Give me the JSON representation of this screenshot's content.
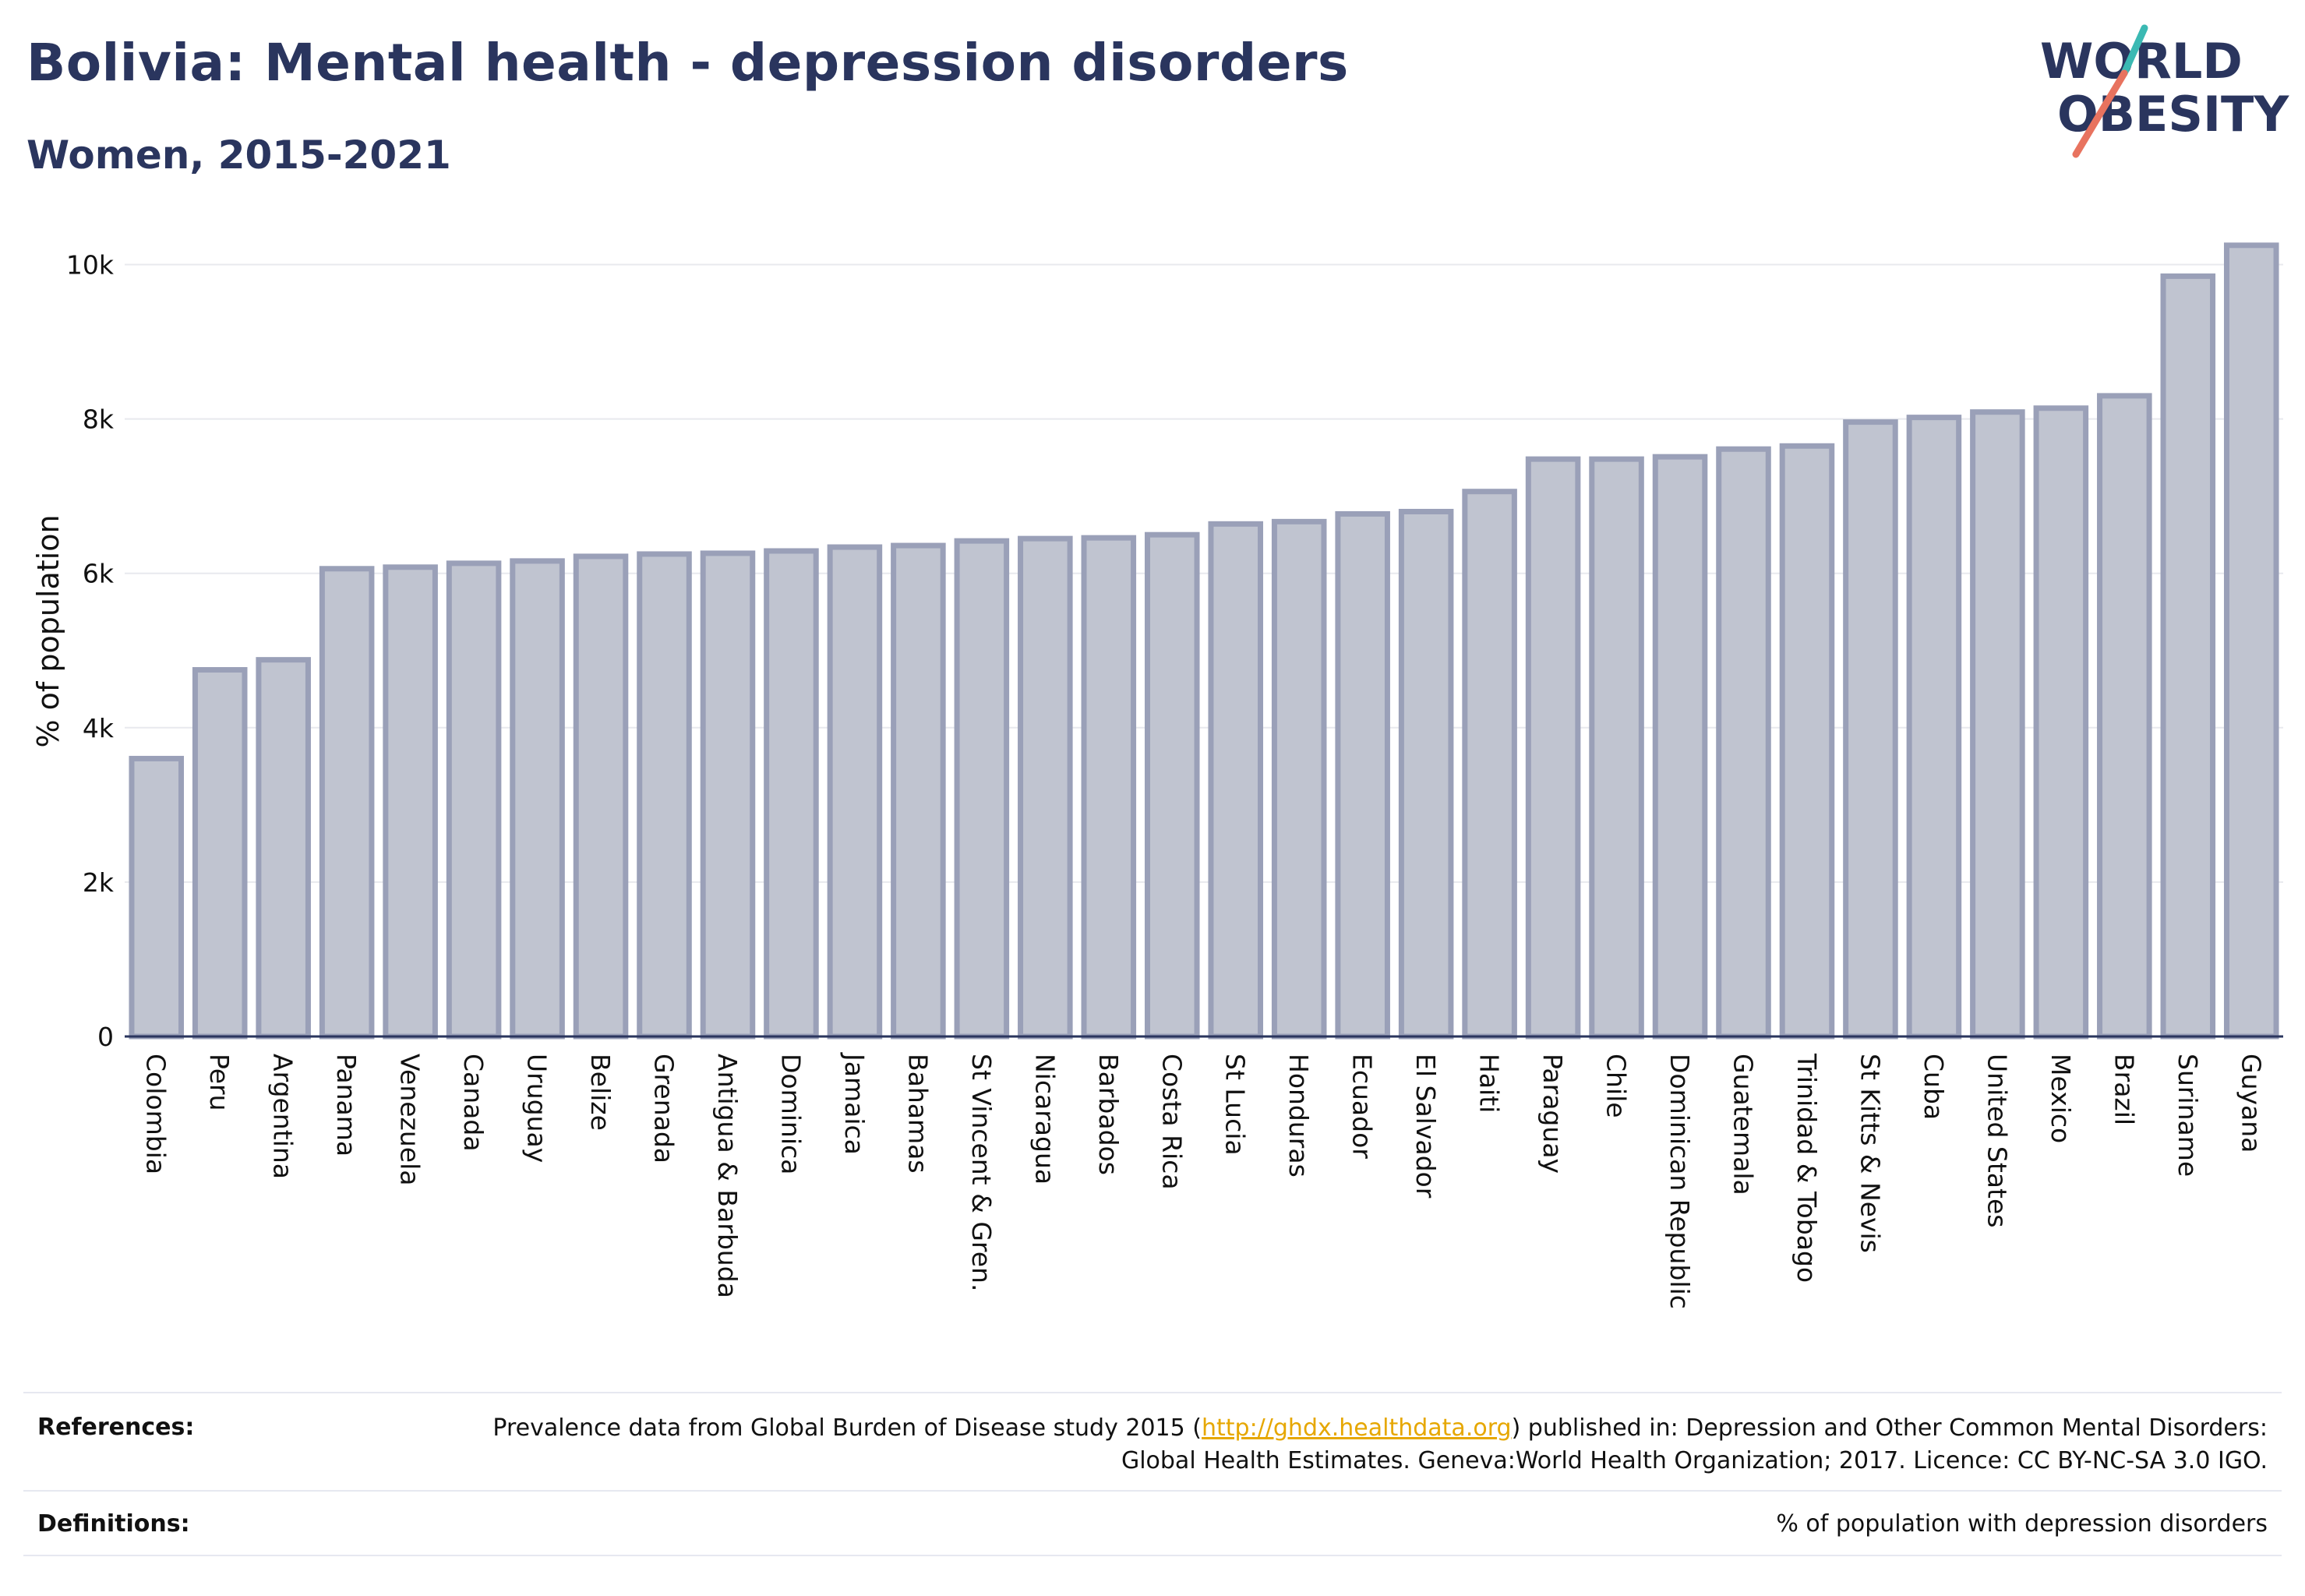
{
  "header": {
    "title": "Bolivia: Mental health - depression disorders",
    "subtitle": "Women, 2015-2021"
  },
  "logo": {
    "line1": "WORLD",
    "line2": "OBESITY",
    "accent_teal": "#3bb9b3",
    "accent_coral": "#e8735f",
    "text_color": "#2a355e"
  },
  "colors": {
    "bar_fill": "#c0c4d0",
    "bar_stroke": "#9aa0b8",
    "grid": "#e8e9ee",
    "axis": "#2a355e"
  },
  "chart_data": {
    "type": "bar",
    "title": "Bolivia: Mental health - depression disorders",
    "subtitle": "Women, 2015-2021",
    "xlabel": "",
    "ylabel": "% of population",
    "ylim": [
      0,
      10500
    ],
    "yticks": [
      0,
      2000,
      4000,
      6000,
      8000,
      10000
    ],
    "ytick_labels": [
      "0",
      "2k",
      "4k",
      "6k",
      "8k",
      "10k"
    ],
    "grid": true,
    "categories": [
      "Colombia",
      "Peru",
      "Argentina",
      "Panama",
      "Venezuela",
      "Canada",
      "Uruguay",
      "Belize",
      "Grenada",
      "Antigua & Barbuda",
      "Dominica",
      "Jamaica",
      "Bahamas",
      "St Vincent & Gren.",
      "Nicaragua",
      "Barbados",
      "Costa Rica",
      "St Lucia",
      "Honduras",
      "Ecuador",
      "El Salvador",
      "Haiti",
      "Paraguay",
      "Chile",
      "Dominican Republic",
      "Guatemala",
      "Trinidad & Tobago",
      "St Kitts & Nevis",
      "Cuba",
      "United States",
      "Mexico",
      "Brazil",
      "Suriname",
      "Guyana"
    ],
    "values": [
      3600,
      4750,
      4880,
      6060,
      6080,
      6130,
      6160,
      6220,
      6250,
      6260,
      6290,
      6340,
      6360,
      6420,
      6450,
      6460,
      6500,
      6640,
      6670,
      6770,
      6800,
      7060,
      7480,
      7480,
      7510,
      7610,
      7650,
      7960,
      8020,
      8090,
      8140,
      8300,
      9850,
      10250
    ]
  },
  "footer": {
    "references_label": "References:",
    "references_text_before": "Prevalence data from Global Burden of Disease study 2015 (",
    "references_link": "http://ghdx.healthdata.org",
    "references_text_after": ") published in: Depression and Other Common Mental Disorders: Global Health Estimates. Geneva:World Health Organization; 2017. Licence: CC BY-NC-SA 3.0 IGO.",
    "definitions_label": "Definitions:",
    "definitions_text": "% of population with depression disorders"
  }
}
